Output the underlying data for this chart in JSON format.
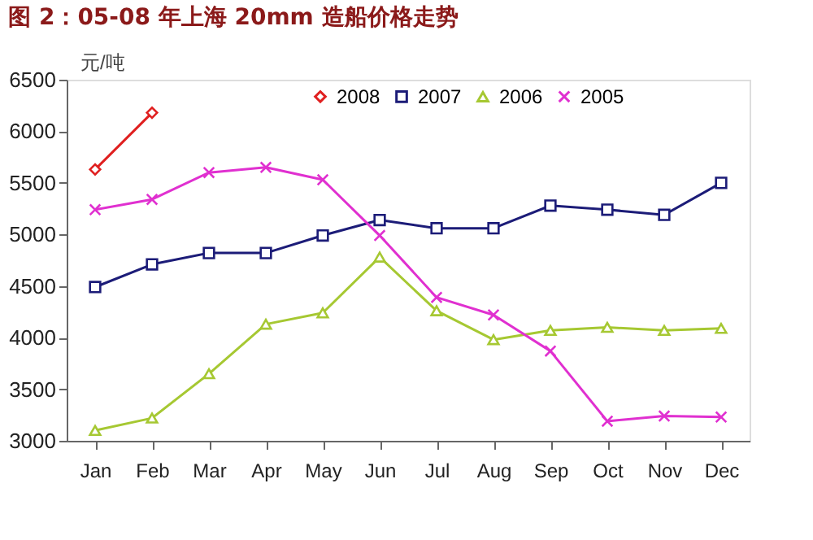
{
  "chart_data": {
    "type": "line",
    "title": "图 2：05-08 年上海 20mm 造船价格走势",
    "ylabel": "元/吨",
    "categories": [
      "Jan",
      "Feb",
      "Mar",
      "Apr",
      "May",
      "Jun",
      "Jul",
      "Aug",
      "Sep",
      "Oct",
      "Nov",
      "Dec"
    ],
    "series": [
      {
        "name": "2008",
        "color": "#e02020",
        "marker": "diamond",
        "values": [
          5630,
          6180,
          null,
          null,
          null,
          null,
          null,
          null,
          null,
          null,
          null,
          null
        ]
      },
      {
        "name": "2007",
        "color": "#1c1c78",
        "marker": "square",
        "values": [
          4490,
          4710,
          4820,
          4820,
          4990,
          5140,
          5060,
          5060,
          5280,
          5240,
          5190,
          5500
        ]
      },
      {
        "name": "2006",
        "color": "#a6c832",
        "marker": "triangle",
        "values": [
          3100,
          3220,
          3650,
          4130,
          4240,
          4780,
          4260,
          3980,
          4070,
          4100,
          4070,
          4090
        ]
      },
      {
        "name": "2005",
        "color": "#e030d0",
        "marker": "cross",
        "values": [
          5240,
          5340,
          5600,
          5650,
          5530,
          4990,
          4390,
          4220,
          3870,
          3190,
          3240,
          3230
        ]
      }
    ],
    "ylim": [
      3000,
      6500
    ],
    "yticks": [
      3000,
      3500,
      4000,
      4500,
      5000,
      5500,
      6000,
      6500
    ],
    "legend": "top",
    "grid": false,
    "line_style": "solid"
  }
}
